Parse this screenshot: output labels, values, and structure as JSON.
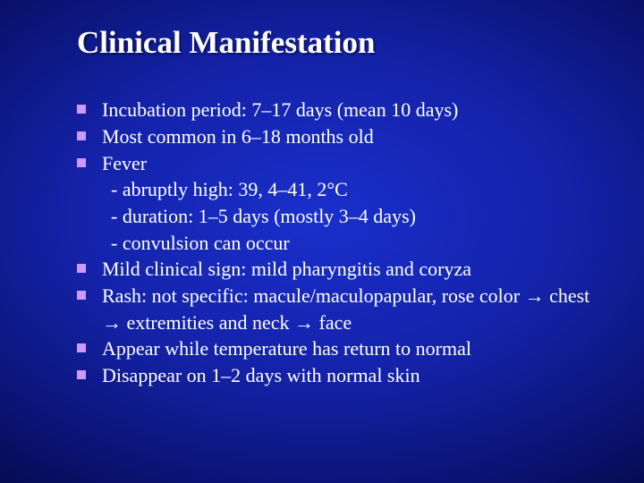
{
  "title": "Clinical Manifestation",
  "colors": {
    "bullet": "#cc99ff",
    "text": "#ffffff"
  },
  "typography": {
    "title_fontsize": 35,
    "body_fontsize": 22,
    "font_family": "Times New Roman"
  },
  "items": [
    {
      "type": "bullet",
      "text": "Incubation period: 7–17 days (mean 10 days)"
    },
    {
      "type": "bullet",
      "text": "Most  common in 6–18 months old"
    },
    {
      "type": "bullet",
      "text": "Fever"
    },
    {
      "type": "sub",
      "text": "- abruptly high: 39, 4–41, 2°C"
    },
    {
      "type": "sub",
      "text": "- duration: 1–5 days (mostly 3–4 days)"
    },
    {
      "type": "sub",
      "text": "- convulsion can occur"
    },
    {
      "type": "bullet",
      "text": "Mild clinical sign: mild pharyngitis and coryza"
    },
    {
      "type": "bullet",
      "text": "Rash: not specific: macule/maculopapular, rose color → chest → extremities and neck → face"
    },
    {
      "type": "bullet",
      "text": "Appear while temperature has return to normal"
    },
    {
      "type": "bullet",
      "text": "Disappear on 1–2 days with normal skin"
    }
  ]
}
